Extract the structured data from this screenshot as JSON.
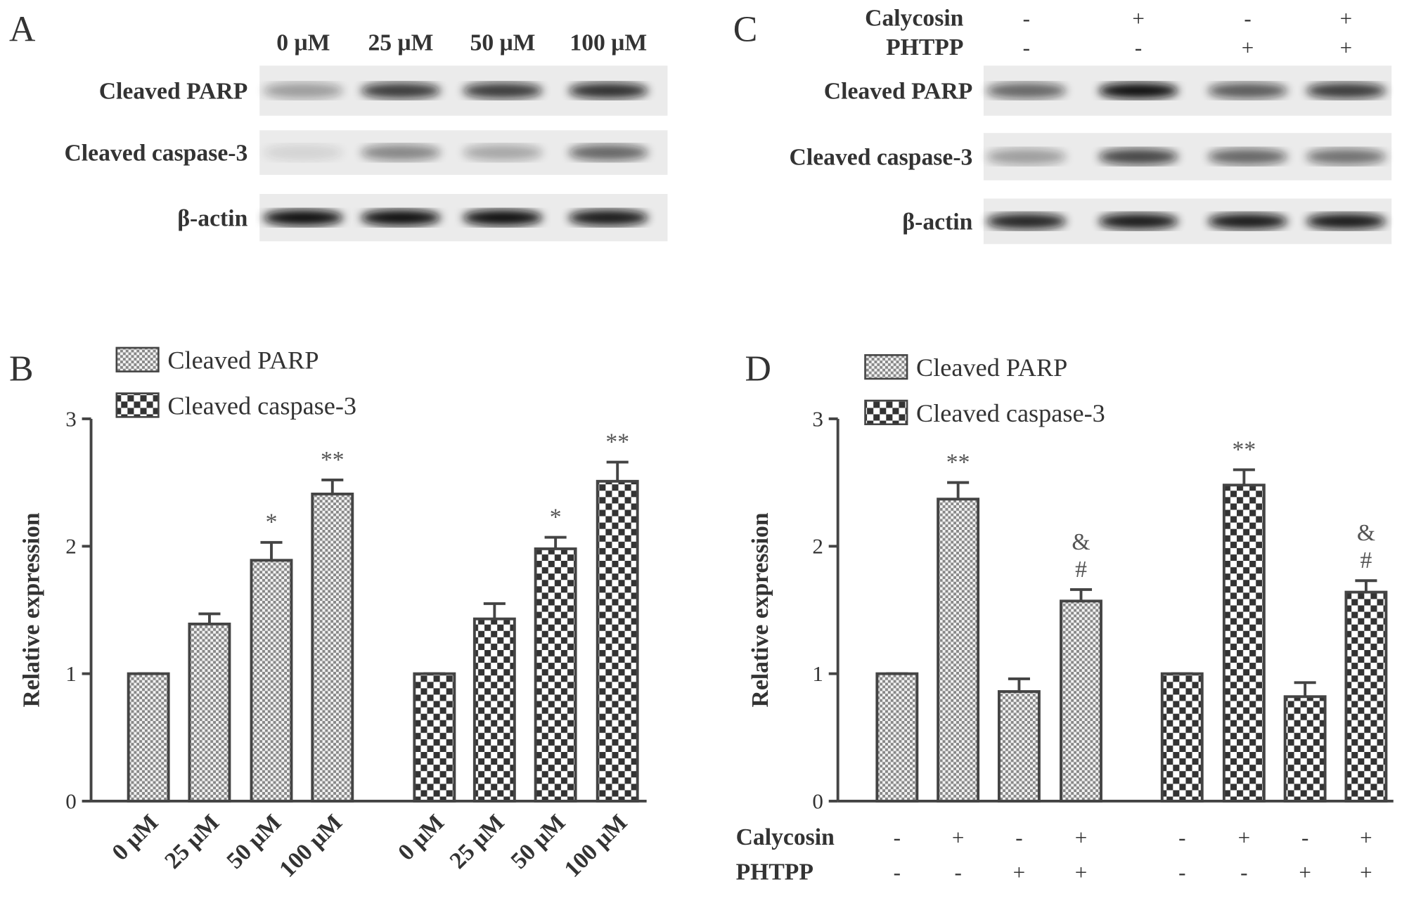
{
  "blots": [
    {
      "panel": "A",
      "lanes": [
        "0 μM",
        "25 μM",
        "50 μM",
        "100 μM"
      ],
      "rows": [
        "Cleaved PARP",
        "Cleaved caspase-3",
        "β-actin"
      ]
    },
    {
      "panel": "C",
      "treatments": [
        {
          "name": "Calycosin",
          "signs": [
            "-",
            "+",
            "-",
            "+"
          ]
        },
        {
          "name": "PHTPP",
          "signs": [
            "-",
            "-",
            "+",
            "+"
          ]
        }
      ],
      "rows": [
        "Cleaved PARP",
        "Cleaved caspase-3",
        "β-actin"
      ]
    }
  ],
  "chart_data": [
    {
      "type": "bar",
      "panel": "B",
      "ylabel": "Relative expression",
      "ylim": [
        0,
        3
      ],
      "yticks": [
        0,
        1,
        2,
        3
      ],
      "categories": [
        "0 μM",
        "25 μM",
        "50 μM",
        "100 μM"
      ],
      "series": [
        {
          "name": "Cleaved PARP",
          "color": "#888888",
          "values": [
            1,
            1.39,
            1.89,
            2.41
          ],
          "errors": [
            0,
            0.08,
            0.14,
            0.11
          ],
          "annotations": [
            null,
            null,
            [
              "*"
            ],
            [
              "**"
            ]
          ]
        },
        {
          "name": "Cleaved caspase-3",
          "color": "#333333",
          "values": [
            1,
            1.43,
            1.98,
            2.51
          ],
          "errors": [
            0,
            0.12,
            0.09,
            0.15
          ],
          "annotations": [
            null,
            null,
            [
              "*"
            ],
            [
              "**"
            ]
          ]
        }
      ]
    },
    {
      "type": "bar",
      "panel": "D",
      "ylabel": "Relative expression",
      "ylim": [
        0,
        3
      ],
      "yticks": [
        0,
        1,
        2,
        3
      ],
      "treatments": [
        {
          "name": "Calycosin",
          "signs": [
            "-",
            "+",
            "-",
            "+"
          ]
        },
        {
          "name": "PHTPP",
          "signs": [
            "-",
            "-",
            "+",
            "+"
          ]
        }
      ],
      "series": [
        {
          "name": "Cleaved PARP",
          "color": "#888888",
          "values": [
            1,
            2.37,
            0.86,
            1.57
          ],
          "errors": [
            0,
            0.13,
            0.1,
            0.09
          ],
          "annotations": [
            null,
            [
              "**"
            ],
            null,
            [
              "&",
              "#"
            ]
          ]
        },
        {
          "name": "Cleaved caspase-3",
          "color": "#333333",
          "values": [
            1,
            2.48,
            0.82,
            1.64
          ],
          "errors": [
            0,
            0.12,
            0.11,
            0.09
          ],
          "annotations": [
            null,
            [
              "**"
            ],
            null,
            [
              "&",
              "#"
            ]
          ]
        }
      ]
    }
  ]
}
